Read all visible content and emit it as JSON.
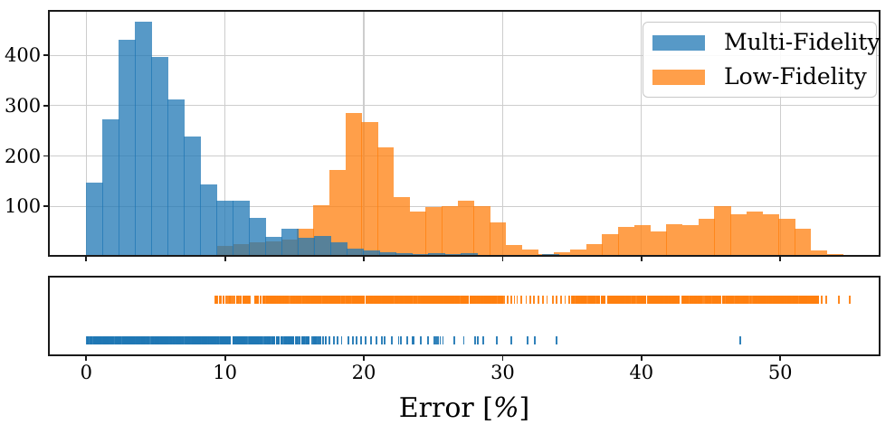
{
  "chart_data": {
    "type": "histogram+rug",
    "title": "",
    "xlabel": "Error [%]",
    "xlabel_parts": {
      "pre": "Error [",
      "pct": "%",
      "post": "]"
    },
    "ylabel": "",
    "x_ticks": [
      0,
      10,
      20,
      30,
      40,
      50
    ],
    "y_ticks": [
      100,
      200,
      300,
      400
    ],
    "xlim": [
      -2.76,
      57.2
    ],
    "ylim": [
      0,
      490
    ],
    "grid": true,
    "legend": {
      "position": "upper right",
      "entries": [
        {
          "label": "Multi-Fidelity",
          "color": "#1f77b4"
        },
        {
          "label": "Low-Fidelity",
          "color": "#ff7f0e"
        }
      ]
    },
    "series": [
      {
        "name": "Low-Fidelity",
        "type": "histogram",
        "color_rgba": "rgba(255,127,14,0.75)",
        "base_color": "#ff7f0e",
        "alpha": 0.75,
        "bin_start": 9.42,
        "bin_width": 1.156,
        "counts": [
          22,
          25,
          28,
          30,
          34,
          55,
          102,
          173,
          285,
          268,
          218,
          118,
          89,
          98,
          100,
          111,
          100,
          68,
          24,
          14,
          6,
          9,
          14,
          26,
          45,
          60,
          63,
          51,
          64,
          62,
          76,
          100,
          84,
          90,
          84,
          76,
          55,
          12,
          5
        ]
      },
      {
        "name": "Multi-Fidelity",
        "type": "histogram",
        "color_rgba": "rgba(31,119,180,0.75)",
        "base_color": "#1f77b4",
        "alpha": 0.75,
        "bin_start": 0.0,
        "bin_width": 1.173,
        "counts": [
          148,
          272,
          431,
          467,
          396,
          312,
          238,
          144,
          112,
          111,
          78,
          40,
          55,
          38,
          41,
          28,
          16,
          13,
          9,
          7,
          6,
          8,
          5,
          8,
          4,
          3,
          3,
          4,
          5,
          2,
          0,
          0,
          0,
          0,
          0,
          0,
          0,
          0,
          0,
          4
        ]
      }
    ],
    "rug": [
      {
        "name": "Low-Fidelity",
        "color_rgba": "rgba(255,127,14,0.92)",
        "row": "top",
        "dense_segments": [
          [
            9.25,
            10.4,
            14
          ],
          [
            10.5,
            12.4,
            26
          ],
          [
            12.5,
            16.2,
            92
          ],
          [
            16.2,
            30.0,
            520
          ],
          [
            35.0,
            52.8,
            560
          ]
        ],
        "sparse_ticks": [
          30.1,
          30.35,
          30.6,
          30.85,
          31.05,
          31.35,
          31.7,
          32.0,
          32.25,
          32.6,
          32.9,
          33.2,
          33.6,
          33.9,
          34.2,
          34.5,
          34.8,
          53.0,
          53.3,
          54.2,
          55.0
        ]
      },
      {
        "name": "Multi-Fidelity",
        "color_rgba": "rgba(31,119,180,0.92)",
        "row": "bottom",
        "dense_segments": [
          [
            0.0,
            12.7,
            420
          ],
          [
            12.7,
            15.3,
            60
          ],
          [
            15.3,
            17.6,
            32
          ]
        ],
        "sparse_ticks": [
          17.85,
          18.1,
          18.4,
          18.9,
          19.2,
          19.5,
          19.8,
          20.15,
          20.5,
          20.9,
          21.3,
          21.5,
          22.0,
          22.5,
          22.65,
          23.1,
          23.5,
          23.6,
          24.1,
          24.65,
          25.1,
          25.2,
          25.35,
          25.5,
          25.7,
          26.5,
          27.2,
          28.0,
          28.2,
          28.6,
          29.6,
          30.6,
          31.8,
          32.3,
          33.9,
          47.1
        ]
      }
    ]
  }
}
